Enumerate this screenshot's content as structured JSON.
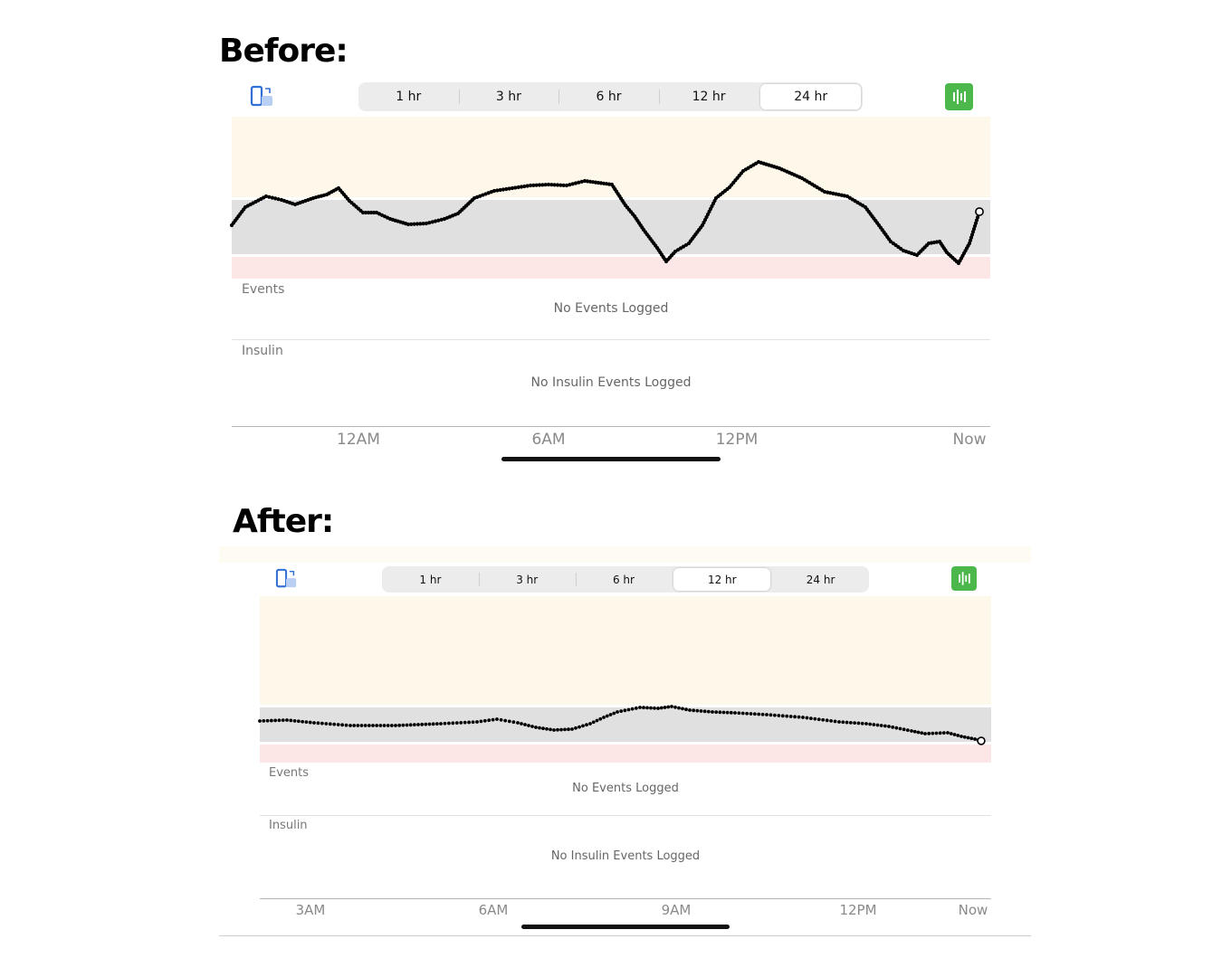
{
  "before": {
    "heading": "Before:",
    "segments": [
      "1 hr",
      "3 hr",
      "6 hr",
      "12 hr",
      "24 hr"
    ],
    "active_segment": 4,
    "events_label": "Events",
    "events_empty": "No Events Logged",
    "insulin_label": "Insulin",
    "insulin_empty": "No Insulin Events Logged",
    "x_ticks": [
      "12AM",
      "6AM",
      "12PM",
      "Now"
    ],
    "trace_color": "#000000"
  },
  "after": {
    "heading": "After:",
    "segments": [
      "1 hr",
      "3 hr",
      "6 hr",
      "12 hr",
      "24 hr"
    ],
    "active_segment": 3,
    "events_label": "Events",
    "events_empty": "No Events Logged",
    "insulin_label": "Insulin",
    "insulin_empty": "No Insulin Events Logged",
    "x_ticks": [
      "3AM",
      "6AM",
      "9AM",
      "12PM",
      "Now"
    ],
    "trace_color": "#000000"
  },
  "colors": {
    "high_band": "#fdf8ea",
    "target_band": "#e0e0e0",
    "low_band": "#fde6e6",
    "accent_green": "#4cb84c",
    "phone_icon_blue": "#2f6fd6"
  },
  "icons": {
    "left": "phone-rotate-icon",
    "right": "chart-bars-icon"
  }
}
